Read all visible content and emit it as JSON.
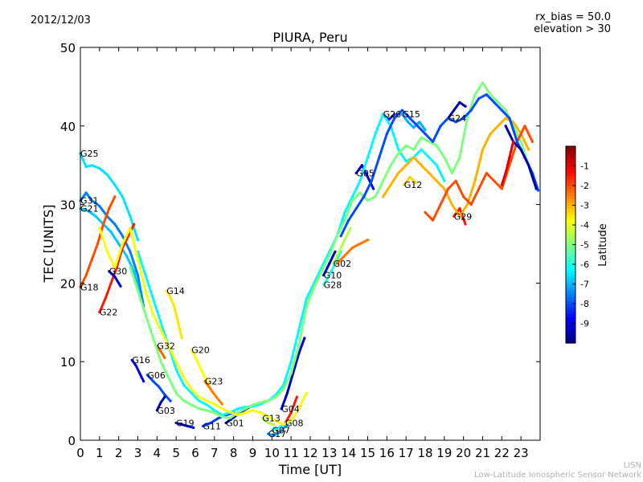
{
  "header": {
    "date": "2012/12/03",
    "bias_line1": "rx_bias = 50.0",
    "bias_line2": "elevation > 30"
  },
  "credit": {
    "line1": "LISN",
    "line2": "Low-Latitude Ionospheric Sensor Network"
  },
  "colorbar": {
    "label": "Latitude",
    "ticks": [
      "-1",
      "-2",
      "-3",
      "-4",
      "-5",
      "-6",
      "-7",
      "-8",
      "-9"
    ],
    "range": [
      -10,
      0
    ],
    "colormap": [
      "#00007f",
      "#0000ff",
      "#007fff",
      "#00ffff",
      "#7fff7f",
      "#ffff00",
      "#ff7f00",
      "#ff0000",
      "#7f0000"
    ]
  },
  "chart_data": {
    "type": "scatter",
    "title": "PIURA, Peru",
    "xlabel": "Time [UT]",
    "ylabel": "TEC [UNITS]",
    "xlim": [
      0,
      24
    ],
    "ylim": [
      0,
      50
    ],
    "xticks": [
      0,
      1,
      2,
      3,
      4,
      5,
      6,
      7,
      8,
      9,
      10,
      11,
      12,
      13,
      14,
      15,
      16,
      17,
      18,
      19,
      20,
      21,
      22,
      23
    ],
    "yticks": [
      0,
      10,
      20,
      30,
      40,
      50
    ],
    "grid": false,
    "series": [
      {
        "name": "G25",
        "lat": -6.5,
        "x": [
          0.0,
          0.3,
          0.6,
          1.0,
          1.4,
          1.8,
          2.2,
          2.6,
          3.0
        ],
        "y": [
          36.5,
          34.8,
          35,
          34.6,
          33.8,
          32.5,
          31.0,
          28.5,
          25.5
        ]
      },
      {
        "name": "G31",
        "lat": -7.5,
        "x": [
          0.0,
          0.3,
          0.6,
          1.0,
          1.4,
          1.8,
          2.2,
          2.6,
          3.0,
          3.3
        ],
        "y": [
          30.5,
          31.5,
          30.5,
          29.8,
          28.5,
          27.5,
          26,
          24,
          21,
          17
        ]
      },
      {
        "name": "G21",
        "lat": -6.8,
        "x": [
          0.0,
          0.4,
          0.8,
          1.2,
          1.6,
          2.0,
          2.4,
          2.8,
          3.1
        ],
        "y": [
          29.5,
          29.2,
          28.5,
          27.5,
          26.5,
          25,
          23.5,
          21.5,
          18.5
        ]
      },
      {
        "name": "G18",
        "lat": -2.0,
        "x": [
          0.0,
          0.3,
          0.6,
          0.9,
          1.2,
          1.5,
          1.8
        ],
        "y": [
          19.5,
          21,
          23,
          25,
          27.5,
          29.5,
          31
        ]
      },
      {
        "name": "G22",
        "lat": -1.5,
        "x": [
          1.0,
          1.3,
          1.6,
          1.9,
          2.2,
          2.5,
          2.8
        ],
        "y": [
          16.3,
          18,
          20,
          22,
          24.5,
          26,
          27.5
        ]
      },
      {
        "name": "G30",
        "lat": -9.2,
        "x": [
          1.5,
          1.8,
          2.1
        ],
        "y": [
          21.5,
          20.8,
          19.6
        ]
      },
      {
        "name": "G14",
        "lat": -3.5,
        "x": [
          4.5,
          4.7,
          4.9,
          5.1,
          5.3
        ],
        "y": [
          19,
          18.2,
          17,
          15,
          13
        ]
      },
      {
        "name": "G16",
        "lat": -9.0,
        "x": [
          2.7,
          2.9,
          3.1,
          3.3
        ],
        "y": [
          10.2,
          9.5,
          8.5,
          7.5
        ]
      },
      {
        "name": "G32",
        "lat": -2.2,
        "x": [
          4.0,
          4.2,
          4.4
        ],
        "y": [
          12,
          11.3,
          10.5
        ]
      },
      {
        "name": "G06",
        "lat": -8.0,
        "x": [
          3.5,
          3.8,
          4.1,
          4.4,
          4.7
        ],
        "y": [
          8.3,
          7.5,
          6.8,
          5.8,
          5
        ]
      },
      {
        "name": "G03",
        "lat": -9.5,
        "x": [
          4.0,
          4.2,
          4.4
        ],
        "y": [
          3.8,
          4.8,
          5.5
        ]
      },
      {
        "name": "G20",
        "lat": -3.8,
        "x": [
          5.8,
          6.0,
          6.3,
          6.6,
          6.9
        ],
        "y": [
          11.5,
          10.5,
          9,
          7.5,
          6
        ]
      },
      {
        "name": "G23",
        "lat": -2.5,
        "x": [
          6.5,
          6.8,
          7.1,
          7.4
        ],
        "y": [
          7.5,
          6.5,
          5.5,
          4.6
        ]
      },
      {
        "name": "G19",
        "lat": -9.0,
        "x": [
          5.0,
          5.3,
          5.6,
          5.9
        ],
        "y": [
          2.2,
          2.0,
          1.8,
          1.6
        ]
      },
      {
        "name": "G11",
        "lat": -8.2,
        "x": [
          6.4,
          6.8,
          7.2,
          7.6,
          8.0
        ],
        "y": [
          1.8,
          2.2,
          2.8,
          3.2,
          3.5
        ]
      },
      {
        "name": "G01",
        "lat": -9.3,
        "x": [
          7.6,
          8.0,
          8.4,
          8.8
        ],
        "y": [
          2.2,
          2.9,
          3.6,
          4.2
        ]
      },
      {
        "name": "G13",
        "lat": -4.5,
        "x": [
          9.5,
          9.8,
          10.1
        ],
        "y": [
          2.8,
          2.2,
          2
        ]
      },
      {
        "name": "G07",
        "lat": -6.0,
        "x": [
          10.0,
          10.3,
          10.6
        ],
        "y": [
          1.3,
          1.5,
          2.0
        ]
      },
      {
        "name": "G17",
        "lat": -7.2,
        "x": [
          9.8,
          10.1,
          10.4,
          10.8
        ],
        "y": [
          0.8,
          0.6,
          1,
          2
        ]
      },
      {
        "name": "G08",
        "lat": -1.5,
        "x": [
          10.7,
          11.0,
          11.3
        ],
        "y": [
          2.2,
          3.5,
          5.5
        ]
      },
      {
        "name": "G04",
        "lat": -9.4,
        "x": [
          10.5,
          10.8,
          11.1,
          11.4,
          11.7
        ],
        "y": [
          4,
          6,
          8.5,
          11,
          13
        ]
      },
      {
        "name": "G10",
        "lat": -9.3,
        "x": [
          12.7,
          13.0,
          13.3
        ],
        "y": [
          21,
          22.5,
          24
        ]
      },
      {
        "name": "G28",
        "lat": -6.0,
        "x": [
          12.7,
          13.0,
          13.3,
          13.6
        ],
        "y": [
          19.8,
          21,
          22.5,
          24
        ]
      },
      {
        "name": "G02",
        "lat": -4.5,
        "x": [
          13.2,
          13.5,
          13.8,
          14.1
        ],
        "y": [
          22.5,
          24,
          25.5,
          27
        ]
      },
      {
        "name": "G05",
        "lat": -9.0,
        "x": [
          14.4,
          14.7,
          15.0,
          15.3
        ],
        "y": [
          34,
          35,
          33.5,
          32
        ]
      },
      {
        "name": "G26",
        "lat": -8.5,
        "x": [
          15.8,
          16.1,
          16.4
        ],
        "y": [
          41.5,
          40.8,
          41.5
        ]
      },
      {
        "name": "G15",
        "lat": -7.0,
        "x": [
          16.8,
          17.1,
          17.4,
          17.7,
          18.0
        ],
        "y": [
          41.5,
          40.5,
          39.8,
          40.5,
          39.5
        ]
      },
      {
        "name": "G12",
        "lat": -3.3,
        "x": [
          16.9,
          17.2,
          17.5
        ],
        "y": [
          32.5,
          33.5,
          32.8
        ]
      },
      {
        "name": "G29",
        "lat": -1.5,
        "x": [
          19.5,
          19.8,
          20.1
        ],
        "y": [
          28.5,
          29.5,
          27.5
        ]
      },
      {
        "name": "G24",
        "lat": -9.6,
        "x": [
          19.2,
          19.5,
          19.8,
          20.1
        ],
        "y": [
          41,
          42,
          43,
          42.5
        ]
      },
      {
        "name": "",
        "lat": -6.3,
        "x": [
          3.0,
          3.4,
          3.8,
          4.2,
          4.6,
          5.0,
          5.4,
          5.8,
          6.2,
          6.6,
          7.0,
          7.4,
          7.8,
          8.2,
          8.6,
          9.0,
          9.4,
          9.8,
          10.2,
          10.6,
          11.0,
          11.4,
          11.8,
          12.2,
          12.6,
          13.0,
          13.4,
          13.8,
          14.2,
          14.6,
          15.0,
          15.4,
          15.8,
          16.2,
          16.6,
          17.0,
          17.4,
          17.8,
          18.2,
          18.6,
          19.0
        ],
        "y": [
          24,
          21,
          18,
          15,
          12,
          9,
          7,
          6,
          5,
          4.5,
          3.8,
          3.2,
          3.5,
          4,
          4.2,
          4.3,
          4.6,
          5,
          5.8,
          7,
          10,
          14,
          18,
          20,
          22,
          24,
          26,
          29,
          31,
          33,
          36,
          39,
          41.5,
          40,
          37,
          35.5,
          36,
          37,
          36,
          35,
          33
        ]
      },
      {
        "name": "",
        "lat": -5.0,
        "x": [
          2.6,
          3.0,
          3.4,
          3.8,
          4.2,
          4.6,
          5.0,
          5.4,
          5.8,
          6.2,
          6.6,
          7.0,
          7.4,
          7.8,
          8.2,
          8.6,
          9.0,
          9.4,
          9.8,
          10.2,
          10.6,
          11.0,
          11.4,
          11.8,
          12.2,
          12.6,
          13.0,
          13.4,
          13.8,
          14.2,
          14.6,
          15.0,
          15.4,
          15.8,
          16.2,
          16.6,
          17.0,
          17.4,
          17.8,
          18.2,
          18.6,
          19.0,
          19.4,
          19.8,
          20.2,
          20.6,
          21.0,
          21.4,
          21.8,
          22.2,
          22.6,
          23.0,
          23.4,
          23.8
        ],
        "y": [
          22,
          19,
          16,
          13,
          10,
          8,
          6,
          5,
          4.5,
          4,
          3.8,
          3.5,
          3,
          2.8,
          3.5,
          4,
          4.5,
          4.8,
          5,
          5.5,
          6.5,
          8.5,
          12,
          17,
          19.5,
          21.5,
          23.5,
          26,
          28,
          30.5,
          31.5,
          30.5,
          31,
          33,
          35,
          36.5,
          37.5,
          37,
          38.5,
          38,
          37.5,
          36,
          34,
          36,
          41,
          44,
          45.5,
          44,
          43,
          42,
          40,
          38,
          35,
          32
        ]
      },
      {
        "name": "",
        "lat": -3.8,
        "x": [
          1.0,
          1.4,
          1.8,
          2.2,
          2.6,
          3.0,
          3.4,
          3.8,
          4.2,
          4.6,
          5.0,
          5.4,
          5.8,
          6.2,
          6.6,
          7.0,
          7.4,
          7.8,
          8.2,
          8.6,
          9.0,
          9.4,
          9.8,
          10.2,
          10.6,
          11.0,
          11.4,
          11.8
        ],
        "y": [
          27,
          24,
          22,
          25,
          27,
          23,
          19,
          16,
          14,
          12,
          10,
          8,
          6.5,
          5.5,
          5,
          4.6,
          4,
          3.6,
          3.2,
          3.5,
          3.8,
          3.5,
          3,
          2.5,
          2,
          2.5,
          4,
          6
        ]
      },
      {
        "name": "",
        "lat": -3.0,
        "x": [
          15.8,
          16.2,
          16.6,
          17.0,
          17.4,
          17.8,
          18.2,
          18.6,
          19.0,
          19.4,
          19.8,
          20.2,
          20.6,
          21.0,
          21.4,
          21.8,
          22.2,
          22.6,
          23.0,
          23.4
        ],
        "y": [
          31,
          32.5,
          34,
          35,
          36,
          35,
          34,
          33,
          32,
          30,
          28.5,
          30,
          33,
          37,
          39,
          40,
          41,
          40.5,
          39,
          37
        ]
      },
      {
        "name": "",
        "lat": -2.0,
        "x": [
          18.0,
          18.4,
          18.8,
          19.2,
          19.6,
          20.0,
          20.4,
          20.8,
          21.2,
          21.6,
          22.0,
          22.4,
          22.8,
          23.2,
          23.6
        ],
        "y": [
          29,
          28,
          30,
          32,
          33,
          31,
          30,
          32,
          34,
          33,
          32,
          35,
          38,
          40,
          38
        ]
      },
      {
        "name": "",
        "lat": -2.4,
        "x": [
          13.4,
          13.8,
          14.2,
          14.6,
          15.0
        ],
        "y": [
          22.5,
          23.5,
          24.5,
          25,
          25.5
        ]
      },
      {
        "name": "",
        "lat": -8.0,
        "x": [
          13.6,
          14.0,
          14.4,
          14.8,
          15.2,
          15.6,
          16.0,
          16.4,
          16.8,
          17.2,
          17.6,
          18.0,
          18.4,
          18.8,
          19.2,
          19.6,
          20.0,
          20.4,
          20.8,
          21.2,
          21.6,
          22.0,
          22.4,
          22.8,
          23.2,
          23.6,
          23.9
        ],
        "y": [
          26,
          28,
          29.5,
          31,
          33,
          36,
          39,
          41,
          42,
          41,
          40,
          39,
          38,
          40,
          41,
          40.5,
          41,
          42,
          43.5,
          44,
          43,
          42,
          41,
          38,
          36,
          34,
          31.8
        ]
      },
      {
        "name": "",
        "lat": -9.6,
        "x": [
          22.2,
          22.6,
          23.0,
          23.4,
          23.8
        ],
        "y": [
          40,
          38,
          37,
          35,
          32
        ]
      },
      {
        "name": "",
        "lat": -1.0,
        "x": [
          22.0,
          22.2,
          22.4,
          22.6
        ],
        "y": [
          32.5,
          34,
          36,
          38
        ]
      }
    ]
  }
}
